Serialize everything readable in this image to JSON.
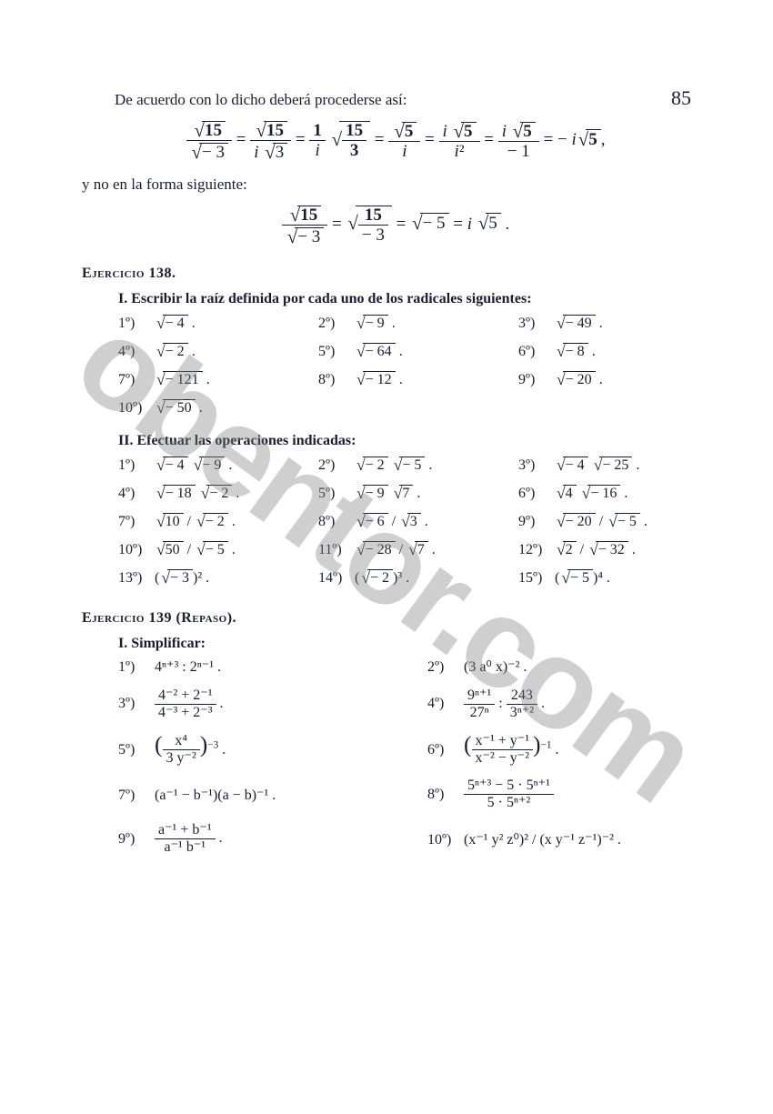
{
  "pageNumber": "85",
  "intro1": "De acuerdo con lo dicho deberá procederse así:",
  "intro2": "y no en la forma siguiente:",
  "bigEquation": [
    {
      "num": "√15",
      "den": "√− 3"
    },
    {
      "num": "√15",
      "den": "i √3"
    },
    {
      "lhs": "1/i",
      "rhs": "√(15/3)"
    },
    {
      "num": "√5",
      "den": "i"
    },
    {
      "num": "i √5",
      "den": "i²"
    },
    {
      "num": "i √5",
      "den": "− 1"
    },
    {
      "tail": "− i√5,"
    }
  ],
  "smallEquation": [
    {
      "num": "√15",
      "den": "√− 3"
    },
    {
      "sqrtFrac": {
        "num": "15",
        "den": "− 3"
      }
    },
    "√− 5",
    "i √5 ."
  ],
  "ex138": {
    "title": "Ejercicio 138.",
    "part1": "I.  Escribir la raíz definida por cada uno de los radicales siguientes:",
    "items1": [
      [
        "1º)",
        "√− 4 ."
      ],
      [
        "2º)",
        "√− 9 ."
      ],
      [
        "3º)",
        "√− 49 ."
      ],
      [
        "4º)",
        "√− 2 ."
      ],
      [
        "5º)",
        "√− 64 ."
      ],
      [
        "6º)",
        "√− 8 ."
      ],
      [
        "7º)",
        "√− 121 ."
      ],
      [
        "8º)",
        "√− 12 ."
      ],
      [
        "9º)",
        "√− 20 ."
      ],
      [
        "10º)",
        "√− 50 ."
      ]
    ],
    "part2": "II.  Efectuar las operaciones indicadas:",
    "items2": [
      [
        "1º)",
        "√− 4 √− 9 ."
      ],
      [
        "2º)",
        "√− 2 √− 5 ."
      ],
      [
        "3º)",
        "√− 4 √− 25 ."
      ],
      [
        "4º)",
        "√− 18 √− 2 ."
      ],
      [
        "5º)",
        "√− 9 √7 ."
      ],
      [
        "6º)",
        "√4 √− 16 ."
      ],
      [
        "7º)",
        "√10 / √− 2 ."
      ],
      [
        "8º)",
        "√− 6 / √3 ."
      ],
      [
        "9º)",
        "√− 20 / √− 5 ."
      ],
      [
        "10º)",
        "√50 / √− 5 ."
      ],
      [
        "11º)",
        "√− 28 / √7 ."
      ],
      [
        "12º)",
        "√2 / √− 32 ."
      ],
      [
        "13º)",
        "(√− 3)² ."
      ],
      [
        "14º)",
        "(√− 2)³ ."
      ],
      [
        "15º)",
        "(√− 5)⁴ ."
      ]
    ]
  },
  "ex139": {
    "title": "Ejercicio 139 (Repaso).",
    "part1": "I.  Simplificar:",
    "items": [
      [
        "1º)",
        {
          "type": "plain",
          "text": "4ⁿ⁺³ : 2ⁿ⁻¹ ."
        }
      ],
      [
        "2º)",
        {
          "type": "plain",
          "text": "(3 a⁰ x)⁻² ."
        }
      ],
      [
        "3º)",
        {
          "type": "frac",
          "num": "4⁻² + 2⁻¹",
          "den": "4⁻³ + 2⁻³",
          "suffix": "."
        }
      ],
      [
        "4º)",
        {
          "type": "frac2",
          "a_num": "9ⁿ⁺¹",
          "a_den": "27ⁿ",
          "b_num": "243",
          "b_den": "3ⁿ⁺²",
          "suffix": "."
        }
      ],
      [
        "5º)",
        {
          "type": "parenfrac",
          "num": "x⁴",
          "den": "3 y⁻²",
          "exp": "−3",
          "suffix": "."
        }
      ],
      [
        "6º)",
        {
          "type": "parenfrac",
          "num": "x⁻¹ + y⁻¹",
          "den": "x⁻² − y⁻²",
          "exp": "−1",
          "suffix": "."
        }
      ],
      [
        "7º)",
        {
          "type": "plain",
          "text": "(a⁻¹ − b⁻¹)(a − b)⁻¹ ."
        }
      ],
      [
        "8º)",
        {
          "type": "frac",
          "num": "5ⁿ⁺³ − 5 · 5ⁿ⁺¹",
          "den": "5 · 5ⁿ⁺²",
          "suffix": ""
        }
      ],
      [
        "9º)",
        {
          "type": "frac",
          "num": "a⁻¹ + b⁻¹",
          "den": "a⁻¹ b⁻¹",
          "suffix": "."
        }
      ],
      [
        "10º)",
        {
          "type": "plain",
          "text": "(x⁻¹ y² z⁰)² / (x y⁻¹ z⁻¹)⁻² ."
        }
      ]
    ]
  },
  "watermark": "obentor.com",
  "colors": {
    "text": "#1a1d30",
    "background": "#ffffff",
    "watermark": "rgba(130,130,130,0.38)"
  },
  "fontsizes": {
    "body": 17,
    "pageNumber": 22,
    "equation": 19,
    "exercises": 16
  }
}
